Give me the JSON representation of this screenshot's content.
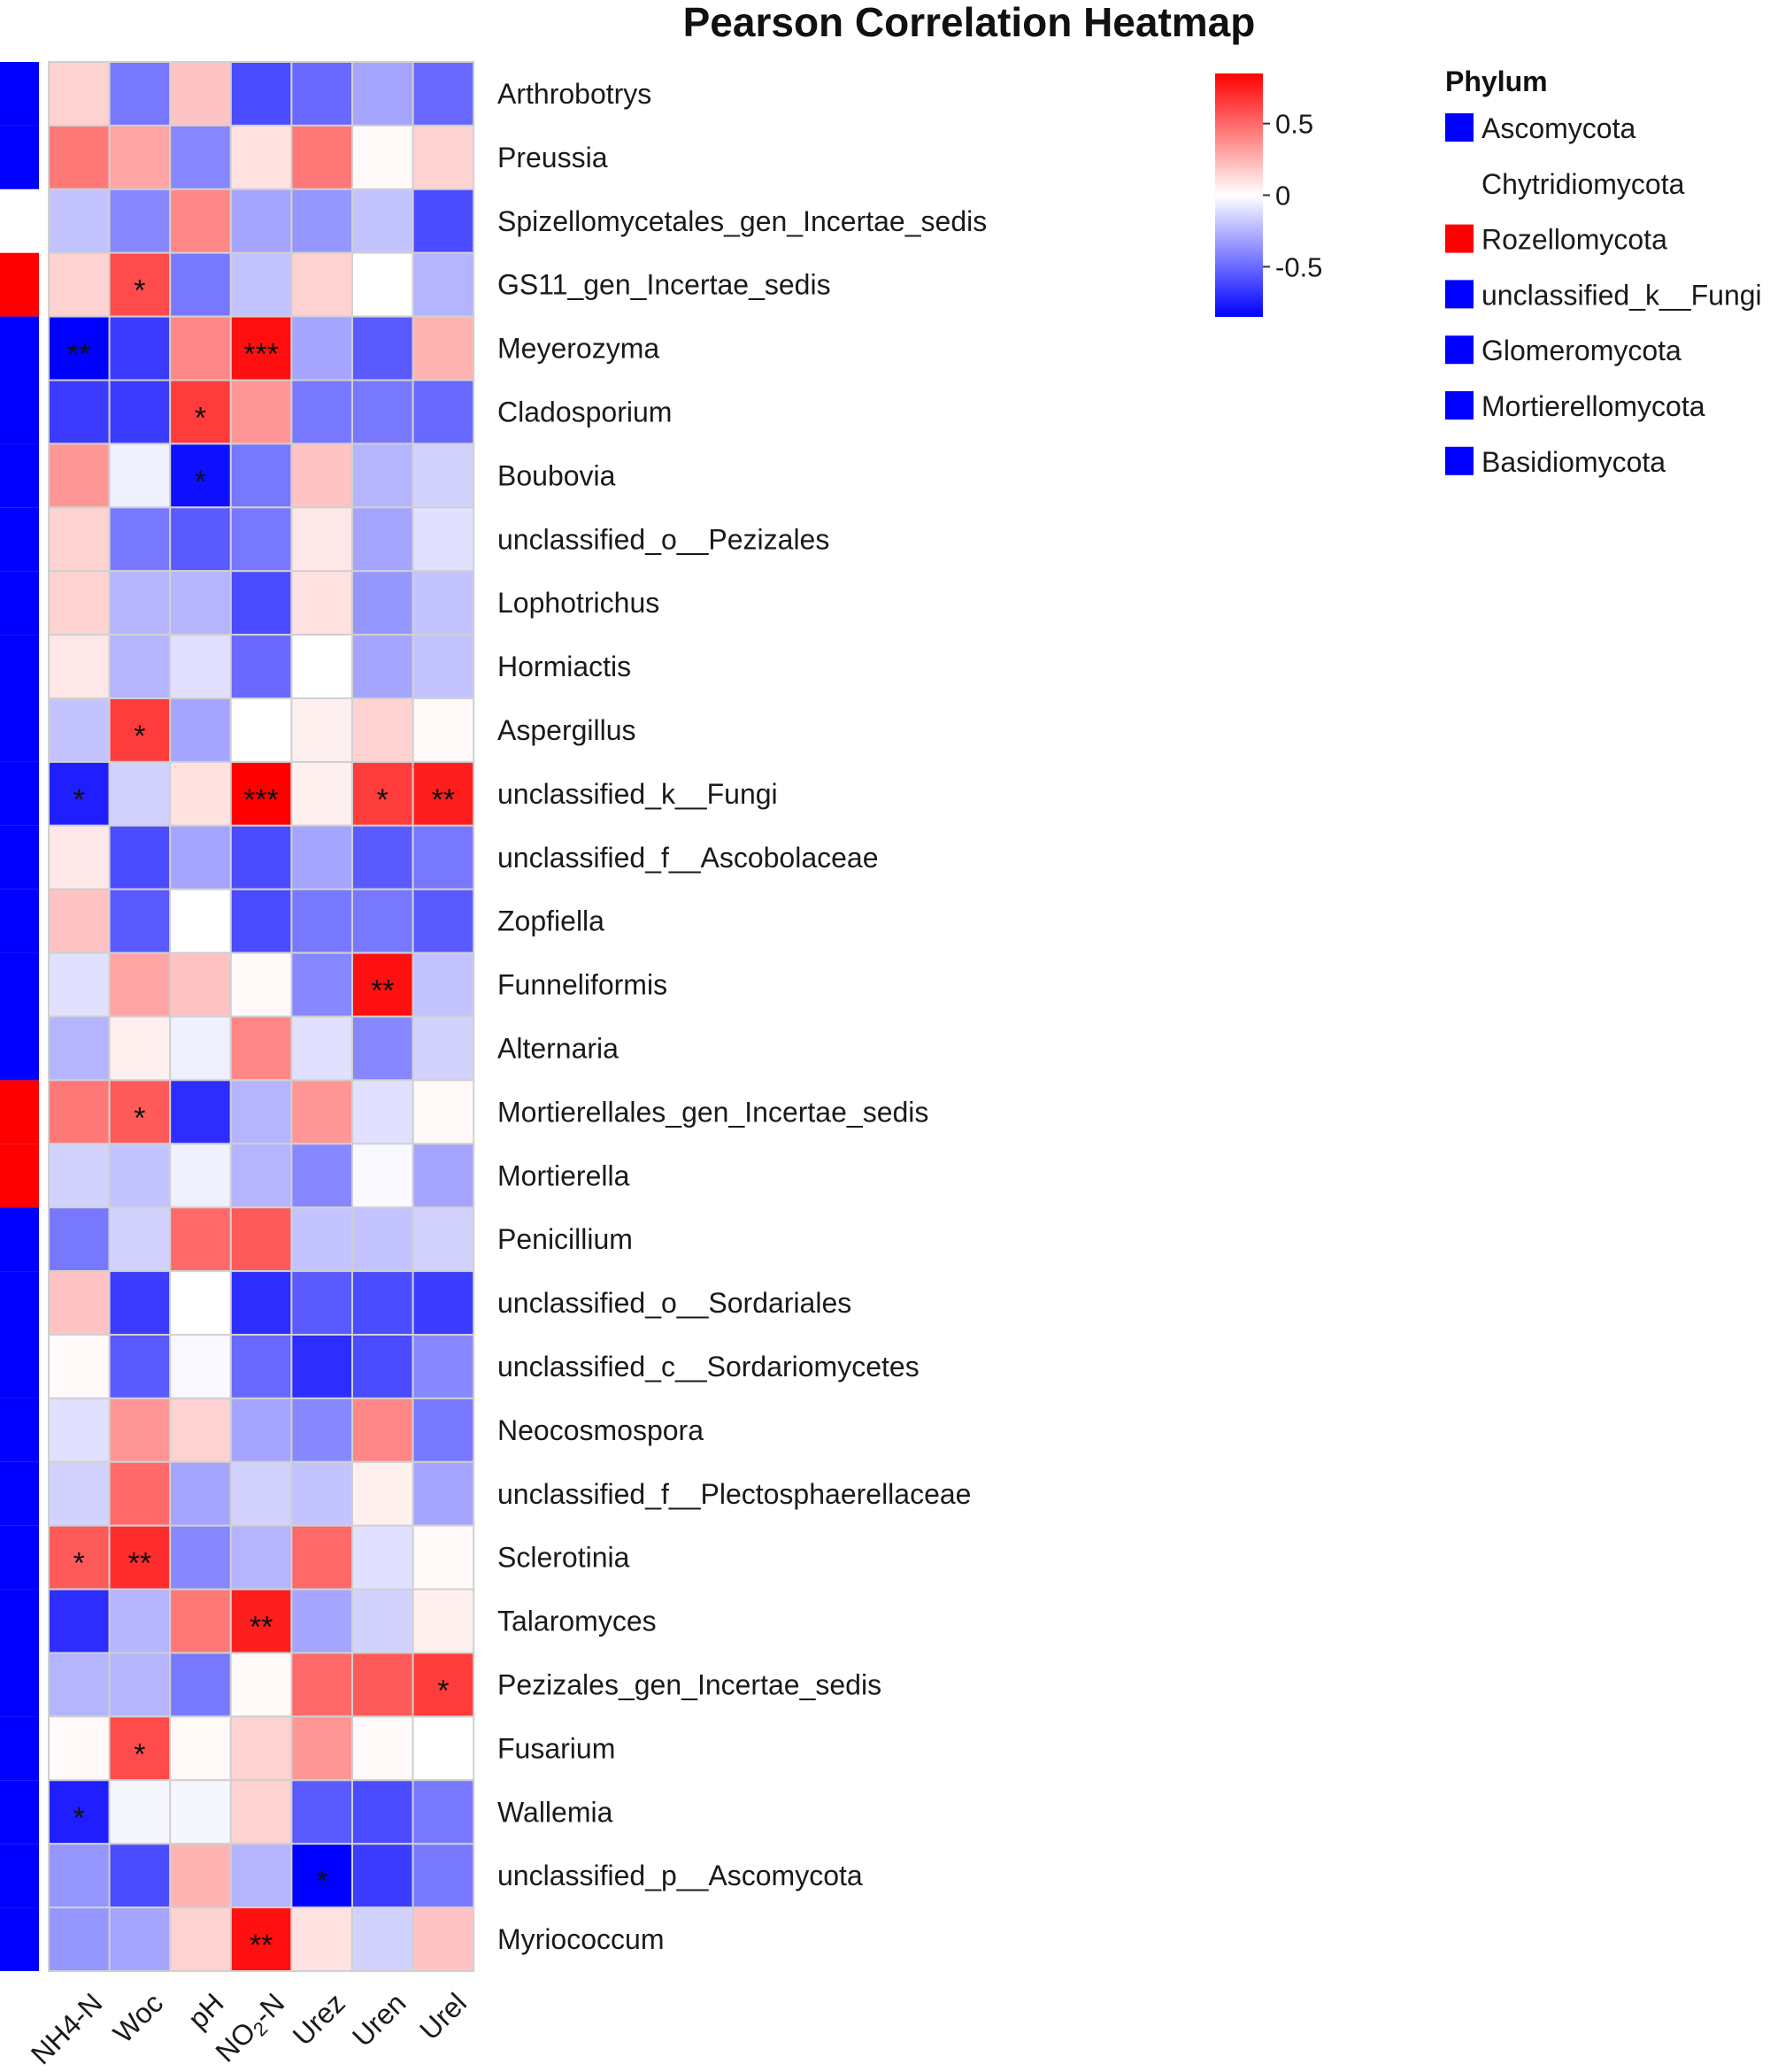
{
  "chart_data": {
    "type": "heatmap",
    "title": "Pearson Correlation Heatmap",
    "columns": [
      "NH4-N",
      "Woc",
      "pH",
      "NO2-N",
      "Urez",
      "Uren",
      "Urel"
    ],
    "col_label_parts": [
      [
        {
          "t": "NH4-N"
        }
      ],
      [
        {
          "t": "Woc"
        }
      ],
      [
        {
          "t": "pH"
        }
      ],
      [
        {
          "t": "NO"
        },
        {
          "t": "2",
          "sub": true
        },
        {
          "t": "-N"
        }
      ],
      [
        {
          "t": "Urez"
        }
      ],
      [
        {
          "t": "Uren"
        }
      ],
      [
        {
          "t": "Urel"
        }
      ]
    ],
    "rows": [
      {
        "name": "Arthrobotrys",
        "phylum": "Ascomycota",
        "values": [
          0.15,
          -0.45,
          0.2,
          -0.6,
          -0.5,
          -0.3,
          -0.5
        ],
        "sig": [
          "",
          "",
          "",
          "",
          "",
          "",
          ""
        ]
      },
      {
        "name": "Preussia",
        "phylum": "Ascomycota",
        "values": [
          0.45,
          0.3,
          -0.4,
          0.1,
          0.45,
          0.02,
          0.15
        ],
        "sig": [
          "",
          "",
          "",
          "",
          "",
          "",
          ""
        ]
      },
      {
        "name": "Spizellomycetales_gen_Incertae_sedis",
        "phylum": "Chytridiomycota",
        "values": [
          -0.2,
          -0.4,
          0.4,
          -0.3,
          -0.35,
          -0.2,
          -0.6
        ],
        "sig": [
          "",
          "",
          "",
          "",
          "",
          "",
          ""
        ]
      },
      {
        "name": "GS11_gen_Incertae_sedis",
        "phylum": "Rozellomycota",
        "values": [
          0.15,
          0.6,
          -0.45,
          -0.2,
          0.15,
          0.0,
          -0.25
        ],
        "sig": [
          "",
          "*",
          "",
          "",
          "",
          "",
          ""
        ]
      },
      {
        "name": "Meyerozyma",
        "phylum": "unclassified_k__Fungi",
        "values": [
          -0.85,
          -0.65,
          0.4,
          0.8,
          -0.3,
          -0.55,
          0.25
        ],
        "sig": [
          "**",
          "",
          "",
          "***",
          "",
          "",
          ""
        ]
      },
      {
        "name": "Cladosporium",
        "phylum": "Ascomycota",
        "values": [
          -0.65,
          -0.65,
          0.65,
          0.35,
          -0.45,
          -0.45,
          -0.5
        ],
        "sig": [
          "",
          "",
          "*",
          "",
          "",
          "",
          ""
        ]
      },
      {
        "name": "Boubovia",
        "phylum": "Ascomycota",
        "values": [
          0.35,
          -0.05,
          -0.8,
          -0.45,
          0.2,
          -0.25,
          -0.15
        ],
        "sig": [
          "",
          "",
          "*",
          "",
          "",
          "",
          ""
        ]
      },
      {
        "name": "unclassified_o__Pezizales",
        "phylum": "Ascomycota",
        "values": [
          0.15,
          -0.45,
          -0.55,
          -0.45,
          0.08,
          -0.3,
          -0.1
        ],
        "sig": [
          "",
          "",
          "",
          "",
          "",
          "",
          ""
        ]
      },
      {
        "name": "Lophotrichus",
        "phylum": "Ascomycota",
        "values": [
          0.15,
          -0.25,
          -0.25,
          -0.6,
          0.1,
          -0.35,
          -0.2
        ],
        "sig": [
          "",
          "",
          "",
          "",
          "",
          "",
          ""
        ]
      },
      {
        "name": "Hormiactis",
        "phylum": "Ascomycota",
        "values": [
          0.08,
          -0.25,
          -0.1,
          -0.5,
          0.0,
          -0.3,
          -0.2
        ],
        "sig": [
          "",
          "",
          "",
          "",
          "",
          "",
          ""
        ]
      },
      {
        "name": "Aspergillus",
        "phylum": "Ascomycota",
        "values": [
          -0.2,
          0.65,
          -0.3,
          0.0,
          0.05,
          0.15,
          0.02
        ],
        "sig": [
          "",
          "*",
          "",
          "",
          "",
          "",
          ""
        ]
      },
      {
        "name": "unclassified_k__Fungi",
        "phylum": "Ascomycota",
        "values": [
          -0.75,
          -0.15,
          0.1,
          0.85,
          0.05,
          0.65,
          0.75
        ],
        "sig": [
          "*",
          "",
          "",
          "***",
          "",
          "*",
          "**"
        ]
      },
      {
        "name": "unclassified_f__Ascobolaceae",
        "phylum": "Ascomycota",
        "values": [
          0.08,
          -0.6,
          -0.3,
          -0.6,
          -0.3,
          -0.55,
          -0.45
        ],
        "sig": [
          "",
          "",
          "",
          "",
          "",
          "",
          ""
        ]
      },
      {
        "name": "Zopfiella",
        "phylum": "Ascomycota",
        "values": [
          0.2,
          -0.55,
          0.0,
          -0.6,
          -0.45,
          -0.45,
          -0.55
        ],
        "sig": [
          "",
          "",
          "",
          "",
          "",
          "",
          ""
        ]
      },
      {
        "name": "Funneliformis",
        "phylum": "Glomeromycota",
        "values": [
          -0.1,
          0.3,
          0.2,
          0.02,
          -0.4,
          0.8,
          -0.2
        ],
        "sig": [
          "",
          "",
          "",
          "",
          "",
          "**",
          ""
        ]
      },
      {
        "name": "Alternaria",
        "phylum": "Mortierellomycota",
        "values": [
          -0.25,
          0.05,
          -0.05,
          0.4,
          -0.1,
          -0.4,
          -0.15
        ],
        "sig": [
          "",
          "",
          "",
          "",
          "",
          "",
          ""
        ]
      },
      {
        "name": "Mortierellales_gen_Incertae_sedis",
        "phylum": "Rozellomycota",
        "values": [
          0.45,
          0.55,
          -0.7,
          -0.25,
          0.35,
          -0.1,
          0.02
        ],
        "sig": [
          "",
          "*",
          "",
          "",
          "",
          "",
          ""
        ]
      },
      {
        "name": "Mortierella",
        "phylum": "Rozellomycota",
        "values": [
          -0.15,
          -0.2,
          -0.05,
          -0.25,
          -0.4,
          -0.02,
          -0.3
        ],
        "sig": [
          "",
          "",
          "",
          "",
          "",
          "",
          ""
        ]
      },
      {
        "name": "Penicillium",
        "phylum": "Basidiomycota",
        "values": [
          -0.45,
          -0.15,
          0.5,
          0.55,
          -0.2,
          -0.2,
          -0.15
        ],
        "sig": [
          "",
          "",
          "",
          "",
          "",
          "",
          ""
        ]
      },
      {
        "name": "unclassified_o__Sordariales",
        "phylum": "Basidiomycota",
        "values": [
          0.2,
          -0.65,
          0.0,
          -0.7,
          -0.55,
          -0.6,
          -0.65
        ],
        "sig": [
          "",
          "",
          "",
          "",
          "",
          "",
          ""
        ]
      },
      {
        "name": "unclassified_c__Sordariomycetes",
        "phylum": "Basidiomycota",
        "values": [
          0.02,
          -0.55,
          -0.02,
          -0.5,
          -0.7,
          -0.6,
          -0.4
        ],
        "sig": [
          "",
          "",
          "",
          "",
          "",
          "",
          ""
        ]
      },
      {
        "name": "Neocosmospora",
        "phylum": "Basidiomycota",
        "values": [
          -0.1,
          0.35,
          0.15,
          -0.3,
          -0.4,
          0.4,
          -0.45
        ],
        "sig": [
          "",
          "",
          "",
          "",
          "",
          "",
          ""
        ]
      },
      {
        "name": "unclassified_f__Plectosphaerellaceae",
        "phylum": "Basidiomycota",
        "values": [
          -0.15,
          0.5,
          -0.3,
          -0.15,
          -0.2,
          0.05,
          -0.3
        ],
        "sig": [
          "",
          "",
          "",
          "",
          "",
          "",
          ""
        ]
      },
      {
        "name": "Sclerotinia",
        "phylum": "Basidiomycota",
        "values": [
          0.55,
          0.7,
          -0.4,
          -0.25,
          0.5,
          -0.1,
          0.02
        ],
        "sig": [
          "*",
          "**",
          "",
          "",
          "",
          "",
          ""
        ]
      },
      {
        "name": "Talaromyces",
        "phylum": "Basidiomycota",
        "values": [
          -0.7,
          -0.25,
          0.45,
          0.75,
          -0.3,
          -0.15,
          0.05
        ],
        "sig": [
          "",
          "",
          "",
          "**",
          "",
          "",
          ""
        ]
      },
      {
        "name": "Pezizales_gen_Incertae_sedis",
        "phylum": "Basidiomycota",
        "values": [
          -0.25,
          -0.25,
          -0.45,
          0.02,
          0.5,
          0.55,
          0.65
        ],
        "sig": [
          "",
          "",
          "",
          "",
          "",
          "",
          "*"
        ]
      },
      {
        "name": "Fusarium",
        "phylum": "Basidiomycota",
        "values": [
          0.02,
          0.6,
          0.02,
          0.15,
          0.35,
          0.02,
          0.0
        ],
        "sig": [
          "",
          "*",
          "",
          "",
          "",
          "",
          ""
        ]
      },
      {
        "name": "Wallemia",
        "phylum": "Basidiomycota",
        "values": [
          -0.75,
          -0.03,
          -0.03,
          0.15,
          -0.55,
          -0.6,
          -0.45
        ],
        "sig": [
          "*",
          "",
          "",
          "",
          "",
          "",
          ""
        ]
      },
      {
        "name": "unclassified_p__Ascomycota",
        "phylum": "Basidiomycota",
        "values": [
          -0.35,
          -0.6,
          0.25,
          -0.25,
          -0.85,
          -0.65,
          -0.45
        ],
        "sig": [
          "",
          "",
          "",
          "",
          "*",
          "",
          ""
        ]
      },
      {
        "name": "Myriococcum",
        "phylum": "Basidiomycota",
        "values": [
          -0.35,
          -0.3,
          0.15,
          0.8,
          0.1,
          -0.15,
          0.2
        ],
        "sig": [
          "",
          "",
          "",
          "**",
          "",
          "",
          ""
        ]
      }
    ],
    "color_scale": {
      "min": -0.85,
      "mid": 0.0,
      "max": 0.85,
      "low_color": "#0000ff",
      "mid_color": "#ffffff",
      "high_color": "#ff0000"
    },
    "colorbar_ticks": [
      {
        "value": 0.5,
        "label": "0.5"
      },
      {
        "value": 0.0,
        "label": "0"
      },
      {
        "value": -0.5,
        "label": "-0.5"
      }
    ],
    "annotation_title": "Phylum",
    "phylum_legend": [
      {
        "name": "Ascomycota",
        "color": "#0000ff"
      },
      {
        "name": "Chytridiomycota",
        "color": "#ffffff"
      },
      {
        "name": "Rozellomycota",
        "color": "#ff0000"
      },
      {
        "name": "unclassified_k__Fungi",
        "color": "#0000ff"
      },
      {
        "name": "Glomeromycota",
        "color": "#0000ff"
      },
      {
        "name": "Mortierellomycota",
        "color": "#0000ff"
      },
      {
        "name": "Basidiomycota",
        "color": "#0000ff"
      }
    ]
  }
}
